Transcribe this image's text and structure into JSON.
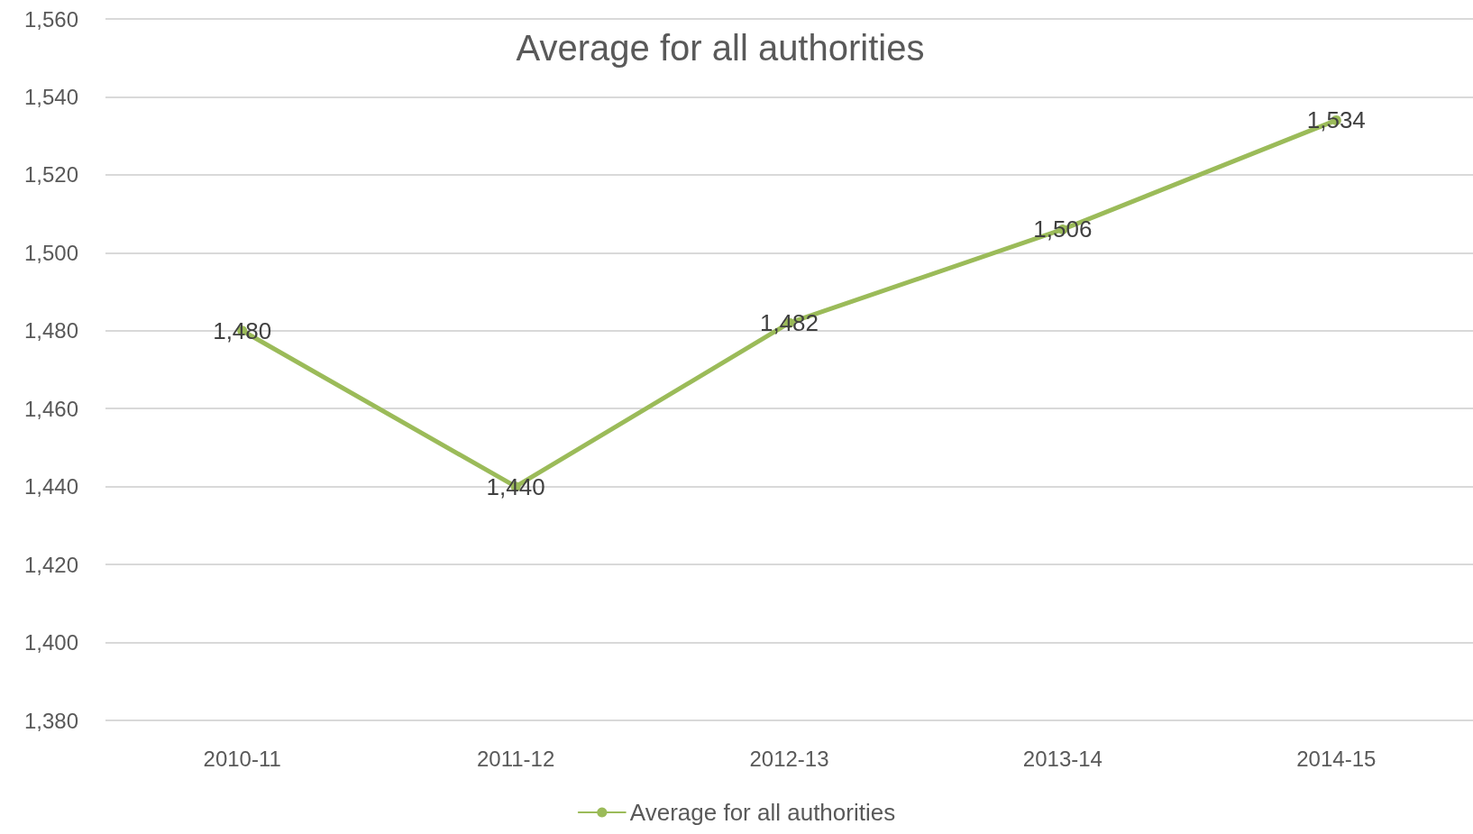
{
  "chart_data": {
    "type": "line",
    "title": "Average for all authorities",
    "categories": [
      "2010-11",
      "2011-12",
      "2012-13",
      "2013-14",
      "2014-15"
    ],
    "series": [
      {
        "name": "Average for all authorities",
        "color": "#9bbb59",
        "values": [
          1480,
          1440,
          1482,
          1506,
          1534
        ],
        "value_labels": [
          "1,480",
          "1,440",
          "1,482",
          "1,506",
          "1,534"
        ]
      }
    ],
    "ylim": [
      1380,
      1560
    ],
    "yticks": [
      {
        "value": 1380,
        "label": "1,380"
      },
      {
        "value": 1400,
        "label": "1,400"
      },
      {
        "value": 1420,
        "label": "1,420"
      },
      {
        "value": 1440,
        "label": "1,440"
      },
      {
        "value": 1460,
        "label": "1,460"
      },
      {
        "value": 1480,
        "label": "1,480"
      },
      {
        "value": 1500,
        "label": "1,500"
      },
      {
        "value": 1520,
        "label": "1,520"
      },
      {
        "value": 1540,
        "label": "1,540"
      },
      {
        "value": 1560,
        "label": "1,560"
      }
    ],
    "grid": "y",
    "legend": "bottom",
    "marker": "circle",
    "line_style": "solid"
  }
}
